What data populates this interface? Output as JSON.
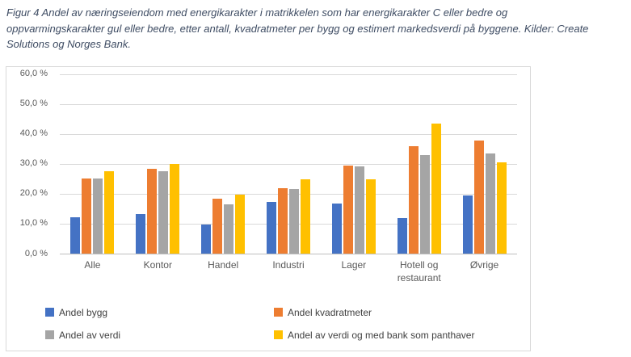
{
  "figure": {
    "title_lines": [
      "Figur 4 Andel av næringseiendom med energikarakter i matrikkelen som har energikarakter C eller bedre og",
      "oppvarmingskarakter gul eller bedre, etter antall, kvadratmeter per bygg og estimert markedsverdi på byggene. Kilder: Create",
      "Solutions og Norges Bank."
    ],
    "title_color": "#3E4C63"
  },
  "chart_data": {
    "type": "bar",
    "title": "Figur 4 Andel av næringseiendom med energikarakter i matrikkelen som har energikarakter C eller bedre og oppvarmingskarakter gul eller bedre, etter antall, kvadratmeter per bygg og estimert markedsverdi på byggene. Kilder: Create Solutions og Norges Bank.",
    "categories": [
      "Alle",
      "Kontor",
      "Handel",
      "Industri",
      "Lager",
      "Hotell og restaurant",
      "Øvrige"
    ],
    "series": [
      {
        "name": "Andel bygg",
        "color": "#4472C4",
        "values": [
          12.2,
          13.3,
          9.6,
          17.3,
          16.6,
          11.9,
          19.5
        ]
      },
      {
        "name": "Andel kvadratmeter",
        "color": "#ED7D31",
        "values": [
          25.1,
          28.4,
          18.3,
          21.8,
          29.3,
          36.0,
          37.8
        ]
      },
      {
        "name": "Andel av verdi",
        "color": "#A5A5A5",
        "values": [
          25.1,
          27.6,
          16.5,
          21.5,
          29.0,
          32.9,
          33.4
        ]
      },
      {
        "name": "Andel av verdi og med bank som panthaver",
        "color": "#FFC000",
        "values": [
          27.6,
          29.9,
          19.7,
          24.9,
          24.9,
          43.4,
          30.5
        ]
      }
    ],
    "xlabel": "",
    "ylabel": "",
    "ylim": [
      0,
      60
    ],
    "ytick_step": 10,
    "ytick_labels": [
      "0,0 %",
      "10,0 %",
      "20,0 %",
      "30,0 %",
      "40,0 %",
      "50,0 %",
      "60,0 %"
    ],
    "grid": true,
    "legend_position": "bottom",
    "gridline_color": "#D9D9D9",
    "axis_text_color": "#595959",
    "legend_text_color": "#404040"
  }
}
